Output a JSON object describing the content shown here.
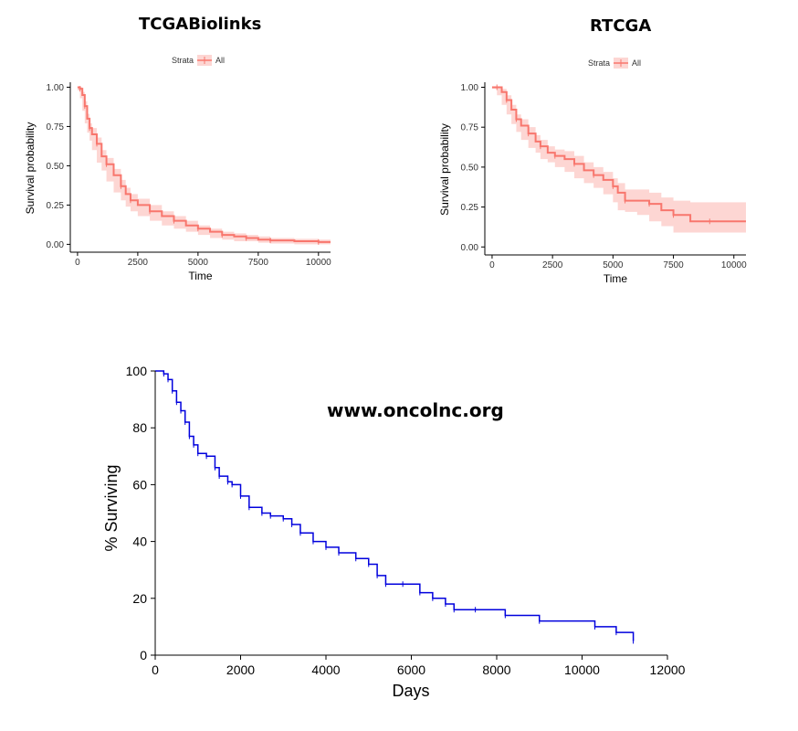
{
  "chart_data": [
    {
      "type": "line",
      "title": "TCGABiolinks",
      "legend_title": "Strata",
      "legend_position": "top",
      "xlabel": "Time",
      "ylabel": "Survival probability",
      "xlim": [
        -300,
        10500
      ],
      "ylim": [
        -0.05,
        1.02
      ],
      "xticks": [
        0,
        2500,
        5000,
        7500,
        10000
      ],
      "yticks": [
        0.0,
        0.25,
        0.5,
        0.75,
        1.0
      ],
      "xtick_labels": [
        "0",
        "2500",
        "5000",
        "7500",
        "10000"
      ],
      "ytick_labels": [
        "0.00",
        "0.25",
        "0.50",
        "0.75",
        "1.00"
      ],
      "grid": false,
      "color": "#F8766D",
      "series": [
        {
          "name": "All",
          "x": [
            0,
            100,
            200,
            300,
            400,
            500,
            600,
            800,
            1000,
            1200,
            1500,
            1800,
            2000,
            2200,
            2500,
            3000,
            3500,
            4000,
            4500,
            5000,
            5500,
            6000,
            6500,
            7000,
            7500,
            8000,
            9000,
            10000,
            10500
          ],
          "y": [
            1.0,
            0.99,
            0.95,
            0.88,
            0.8,
            0.74,
            0.7,
            0.64,
            0.56,
            0.51,
            0.44,
            0.37,
            0.32,
            0.28,
            0.25,
            0.21,
            0.18,
            0.15,
            0.12,
            0.1,
            0.08,
            0.06,
            0.05,
            0.04,
            0.03,
            0.025,
            0.02,
            0.015,
            0.015
          ],
          "lower": [
            1.0,
            0.98,
            0.93,
            0.85,
            0.77,
            0.71,
            0.66,
            0.6,
            0.52,
            0.47,
            0.4,
            0.33,
            0.28,
            0.24,
            0.21,
            0.18,
            0.15,
            0.12,
            0.1,
            0.08,
            0.06,
            0.04,
            0.03,
            0.02,
            0.02,
            0.01,
            0.005,
            0.0,
            0.0
          ],
          "upper": [
            1.0,
            1.0,
            0.97,
            0.91,
            0.83,
            0.77,
            0.74,
            0.68,
            0.6,
            0.55,
            0.48,
            0.41,
            0.36,
            0.32,
            0.29,
            0.25,
            0.21,
            0.18,
            0.15,
            0.12,
            0.1,
            0.08,
            0.07,
            0.06,
            0.05,
            0.04,
            0.035,
            0.03,
            0.03
          ]
        }
      ]
    },
    {
      "type": "line",
      "title": "RTCGA",
      "legend_title": "Strata",
      "legend_position": "top",
      "xlabel": "Time",
      "ylabel": "Survival probability",
      "xlim": [
        -300,
        10500
      ],
      "ylim": [
        -0.05,
        1.02
      ],
      "xticks": [
        0,
        2500,
        5000,
        7500,
        10000
      ],
      "yticks": [
        0.0,
        0.25,
        0.5,
        0.75,
        1.0
      ],
      "xtick_labels": [
        "0",
        "2500",
        "5000",
        "7500",
        "10000"
      ],
      "ytick_labels": [
        "0.00",
        "0.25",
        "0.50",
        "0.75",
        "1.00"
      ],
      "grid": false,
      "color": "#F8766D",
      "series": [
        {
          "name": "All",
          "x": [
            0,
            200,
            400,
            600,
            800,
            1000,
            1200,
            1500,
            1800,
            2000,
            2300,
            2600,
            3000,
            3400,
            3800,
            4200,
            4600,
            5000,
            5200,
            5500,
            6000,
            6500,
            7000,
            7500,
            8200,
            9000,
            10000,
            10500
          ],
          "y": [
            1.0,
            1.0,
            0.97,
            0.92,
            0.86,
            0.8,
            0.76,
            0.71,
            0.66,
            0.63,
            0.59,
            0.57,
            0.55,
            0.52,
            0.48,
            0.45,
            0.42,
            0.38,
            0.34,
            0.29,
            0.29,
            0.27,
            0.23,
            0.2,
            0.16,
            0.16,
            0.16,
            0.16
          ],
          "lower": [
            1.0,
            0.99,
            0.95,
            0.89,
            0.83,
            0.77,
            0.72,
            0.67,
            0.62,
            0.59,
            0.55,
            0.53,
            0.5,
            0.47,
            0.43,
            0.4,
            0.37,
            0.33,
            0.28,
            0.23,
            0.22,
            0.2,
            0.16,
            0.13,
            0.09,
            0.09,
            0.09,
            0.09
          ],
          "upper": [
            1.0,
            1.0,
            0.99,
            0.95,
            0.89,
            0.83,
            0.8,
            0.75,
            0.7,
            0.67,
            0.63,
            0.61,
            0.6,
            0.57,
            0.53,
            0.5,
            0.47,
            0.43,
            0.4,
            0.36,
            0.36,
            0.34,
            0.31,
            0.29,
            0.28,
            0.28,
            0.28,
            0.28
          ]
        }
      ]
    },
    {
      "type": "line",
      "title": "",
      "annotation": "www.oncolnc.org",
      "xlabel": "Days",
      "ylabel": "% Surviving",
      "xlim": [
        0,
        12000
      ],
      "ylim": [
        0,
        100
      ],
      "xticks": [
        0,
        2000,
        4000,
        6000,
        8000,
        10000,
        12000
      ],
      "yticks": [
        0,
        20,
        40,
        60,
        80,
        100
      ],
      "xtick_labels": [
        "0",
        "2000",
        "4000",
        "6000",
        "8000",
        "10000",
        "12000"
      ],
      "ytick_labels": [
        "0",
        "20",
        "40",
        "60",
        "80",
        "100"
      ],
      "grid": false,
      "color": "#0000DD",
      "series": [
        {
          "name": "",
          "x": [
            0,
            200,
            300,
            400,
            500,
            600,
            700,
            800,
            900,
            1000,
            1200,
            1400,
            1500,
            1700,
            1800,
            2000,
            2200,
            2500,
            2700,
            3000,
            3200,
            3400,
            3700,
            4000,
            4300,
            4700,
            5000,
            5200,
            5400,
            5800,
            6200,
            6500,
            6800,
            7000,
            7500,
            8200,
            9000,
            10300,
            10800,
            11200
          ],
          "y": [
            100,
            99,
            97,
            93,
            89,
            86,
            82,
            77,
            74,
            71,
            70,
            66,
            63,
            61,
            60,
            56,
            52,
            50,
            49,
            48,
            46,
            43,
            40,
            38,
            36,
            34,
            32,
            28,
            25,
            25,
            22,
            20,
            18,
            16,
            16,
            14,
            12,
            10,
            8,
            5
          ]
        }
      ]
    }
  ]
}
